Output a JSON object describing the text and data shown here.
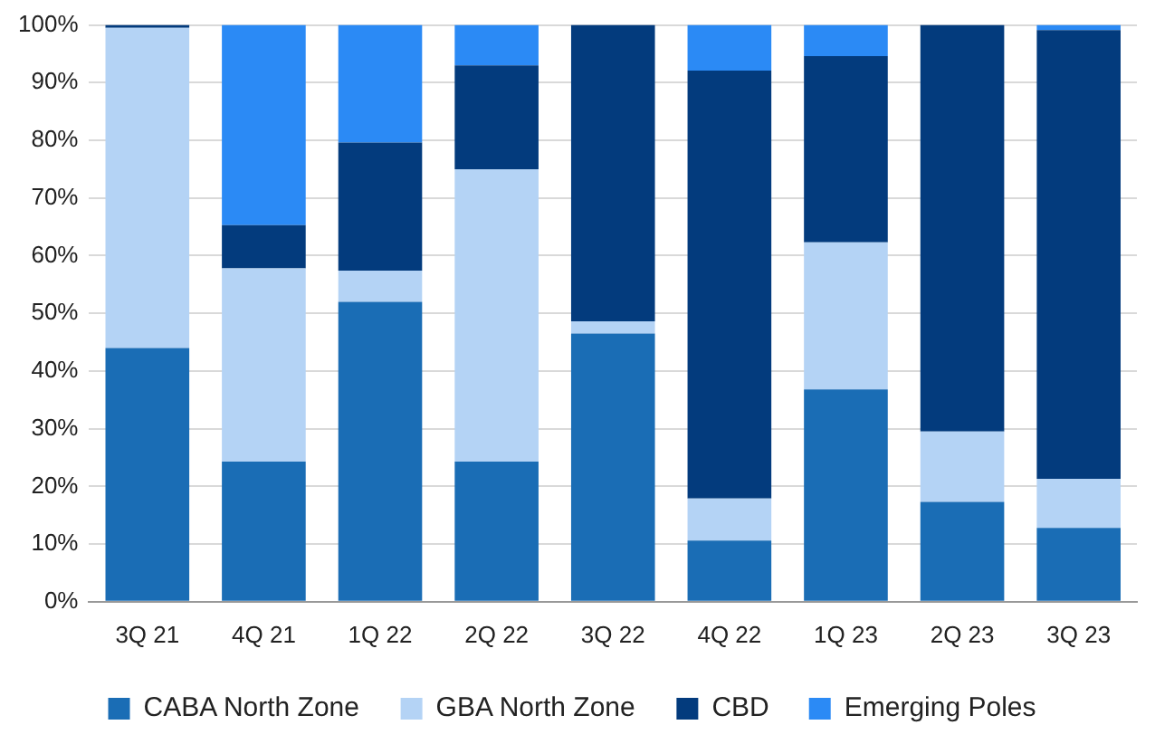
{
  "chart_data": {
    "type": "bar",
    "stacked": true,
    "categories": [
      "3Q 21",
      "4Q 21",
      "1Q 22",
      "2Q 22",
      "3Q 22",
      "4Q 22",
      "1Q 23",
      "2Q 23",
      "3Q 23"
    ],
    "series": [
      {
        "name": "CABA North Zone",
        "color": "#1a6db5",
        "values": [
          44,
          24.3,
          52,
          24.3,
          46.5,
          10.6,
          36.8,
          17.3,
          12.8
        ]
      },
      {
        "name": "GBA North Zone",
        "color": "#b4d3f5",
        "values": [
          55.5,
          33.5,
          5.4,
          50.7,
          2.1,
          7.3,
          25.5,
          12.2,
          8.5
        ]
      },
      {
        "name": "CBD",
        "color": "#033b7d",
        "values": [
          0.5,
          7.5,
          22.2,
          18,
          51.4,
          74.2,
          32.3,
          70.5,
          77.8
        ]
      },
      {
        "name": "Emerging Poles",
        "color": "#2b8af5",
        "values": [
          0,
          34.7,
          20.4,
          7,
          0,
          7.9,
          5.4,
          0,
          0.9
        ]
      }
    ],
    "ylim": [
      0,
      100
    ],
    "yticks": [
      {
        "value": 0,
        "label": "0%"
      },
      {
        "value": 10,
        "label": "10%"
      },
      {
        "value": 20,
        "label": "20%"
      },
      {
        "value": 30,
        "label": "30%"
      },
      {
        "value": 40,
        "label": "40%"
      },
      {
        "value": 50,
        "label": "50%"
      },
      {
        "value": 60,
        "label": "60%"
      },
      {
        "value": 70,
        "label": "70%"
      },
      {
        "value": 80,
        "label": "80%"
      },
      {
        "value": 90,
        "label": "90%"
      },
      {
        "value": 100,
        "label": "100%"
      }
    ],
    "grid": "y",
    "legend": "bottom"
  }
}
